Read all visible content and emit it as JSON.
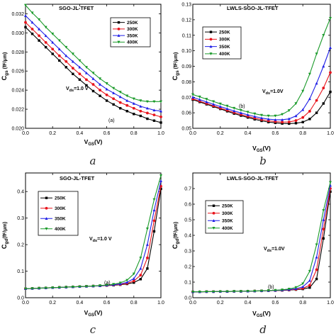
{
  "series_colors": [
    "#000000",
    "#e8141c",
    "#1f1fe6",
    "#1a9a2a"
  ],
  "chart_data": [
    {
      "type": "line",
      "title": "SGO-JL-TFET",
      "panel_letter": "(a)",
      "caption": "a",
      "annotation": "V",
      "annotation_sub": "ds",
      "annotation_rest": "=1.0 V",
      "xlabel_main": "V",
      "xlabel_sub": "GS",
      "xlabel_rest": "(V)",
      "ylabel_main": "C",
      "ylabel_sub": "gs",
      "ylabel_rest": " (fF/μm)",
      "xlim": [
        0.0,
        1.0
      ],
      "ylim": [
        0.02,
        0.033
      ],
      "xticks": [
        "0.0",
        "0.2",
        "0.4",
        "0.6",
        "0.8",
        "1.0"
      ],
      "xtick_values": [
        0.0,
        0.2,
        0.4,
        0.6,
        0.8,
        1.0
      ],
      "yticks": [
        "0.020",
        "0.022",
        "0.024",
        "0.026",
        "0.028",
        "0.030",
        "0.032"
      ],
      "ytick_values": [
        0.02,
        0.022,
        0.024,
        0.026,
        0.028,
        0.03,
        0.032
      ],
      "legend_position": "top-right",
      "x": [
        0.0,
        0.05,
        0.1,
        0.15,
        0.2,
        0.25,
        0.3,
        0.35,
        0.4,
        0.45,
        0.5,
        0.55,
        0.6,
        0.65,
        0.7,
        0.75,
        0.8,
        0.85,
        0.9,
        0.95,
        1.0
      ],
      "series": [
        {
          "name": "250K",
          "values": [
            0.0306,
            0.0299,
            0.0292,
            0.0285,
            0.0278,
            0.0271,
            0.0264,
            0.0257,
            0.0251,
            0.0245,
            0.0239,
            0.0234,
            0.0229,
            0.0225,
            0.0221,
            0.0218,
            0.0215,
            0.0213,
            0.021,
            0.0208,
            0.0206
          ]
        },
        {
          "name": "300K",
          "values": [
            0.0311,
            0.0304,
            0.0297,
            0.029,
            0.0283,
            0.0276,
            0.027,
            0.0263,
            0.0257,
            0.0251,
            0.0246,
            0.024,
            0.0235,
            0.0231,
            0.0227,
            0.0224,
            0.0221,
            0.0218,
            0.0216,
            0.0214,
            0.0212
          ]
        },
        {
          "name": "350K",
          "values": [
            0.0318,
            0.0311,
            0.0304,
            0.0297,
            0.029,
            0.0283,
            0.0276,
            0.027,
            0.0264,
            0.0258,
            0.0252,
            0.0246,
            0.0241,
            0.0237,
            0.0233,
            0.0229,
            0.0226,
            0.0223,
            0.0221,
            0.0219,
            0.0218
          ]
        },
        {
          "name": "400K",
          "values": [
            0.0329,
            0.0321,
            0.0314,
            0.0306,
            0.0299,
            0.0292,
            0.0285,
            0.0278,
            0.0271,
            0.0264,
            0.0258,
            0.0252,
            0.0247,
            0.0242,
            0.0238,
            0.0234,
            0.0231,
            0.0229,
            0.0228,
            0.0228,
            0.0228
          ]
        }
      ]
    },
    {
      "type": "line",
      "title": "LWLS-SGO-JL-TFET",
      "panel_letter": "(b)",
      "caption": "b",
      "annotation": "V",
      "annotation_sub": "ds",
      "annotation_rest": "=1.0V",
      "xlabel_main": "V",
      "xlabel_sub": "GS",
      "xlabel_rest": "(V)",
      "ylabel_main": "C",
      "ylabel_sub": "gs",
      "ylabel_rest": " (fF/μm)",
      "xlim": [
        0.0,
        1.0
      ],
      "ylim": [
        0.05,
        0.13
      ],
      "xticks": [
        "0.0",
        "0.2",
        "0.4",
        "0.6",
        "0.8",
        "1.0"
      ],
      "xtick_values": [
        0.0,
        0.2,
        0.4,
        0.6,
        0.8,
        1.0
      ],
      "yticks": [
        "0.05",
        "0.06",
        "0.07",
        "0.08",
        "0.09",
        "0.10",
        "0.11",
        "0.12",
        "0.13"
      ],
      "ytick_values": [
        0.05,
        0.06,
        0.07,
        0.08,
        0.09,
        0.1,
        0.11,
        0.12,
        0.13
      ],
      "legend_position": "top-left",
      "x": [
        0.0,
        0.05,
        0.1,
        0.15,
        0.2,
        0.25,
        0.3,
        0.35,
        0.4,
        0.45,
        0.5,
        0.55,
        0.6,
        0.65,
        0.7,
        0.75,
        0.8,
        0.85,
        0.9,
        0.95,
        1.0
      ],
      "series": [
        {
          "name": "250K",
          "values": [
            0.0685,
            0.067,
            0.0655,
            0.064,
            0.0625,
            0.061,
            0.0595,
            0.0582,
            0.057,
            0.0558,
            0.0548,
            0.054,
            0.0535,
            0.0531,
            0.053,
            0.0533,
            0.054,
            0.056,
            0.06,
            0.066,
            0.0735
          ]
        },
        {
          "name": "300K",
          "values": [
            0.069,
            0.0675,
            0.066,
            0.0645,
            0.063,
            0.0616,
            0.0602,
            0.0589,
            0.0577,
            0.0566,
            0.0556,
            0.0548,
            0.0543,
            0.054,
            0.0541,
            0.055,
            0.057,
            0.061,
            0.068,
            0.076,
            0.086
          ]
        },
        {
          "name": "350K",
          "values": [
            0.07,
            0.0685,
            0.067,
            0.0655,
            0.064,
            0.0626,
            0.0612,
            0.0599,
            0.0587,
            0.0576,
            0.0566,
            0.0559,
            0.0555,
            0.0555,
            0.0561,
            0.058,
            0.062,
            0.069,
            0.079,
            0.09,
            0.102
          ]
        },
        {
          "name": "400K",
          "values": [
            0.0718,
            0.0703,
            0.0688,
            0.0673,
            0.0658,
            0.0644,
            0.063,
            0.0617,
            0.0605,
            0.0594,
            0.0585,
            0.058,
            0.058,
            0.059,
            0.0615,
            0.066,
            0.074,
            0.085,
            0.098,
            0.11,
            0.121
          ]
        }
      ]
    },
    {
      "type": "line",
      "title": "SGO-JL-TFET",
      "panel_letter": "(a)",
      "caption": "c",
      "annotation": "V",
      "annotation_sub": "ds",
      "annotation_rest": "=1.0 V",
      "xlabel_main": "V",
      "xlabel_sub": "GS",
      "xlabel_rest": "(V)",
      "ylabel_main": "C",
      "ylabel_sub": "gd",
      "ylabel_rest": "(fF/μm)",
      "xlim": [
        0.0,
        1.0
      ],
      "ylim": [
        0.0,
        0.47
      ],
      "xticks": [
        "0.0",
        "0.2",
        "0.4",
        "0.6",
        "0.8",
        "1.0"
      ],
      "xtick_values": [
        0.0,
        0.2,
        0.4,
        0.6,
        0.8,
        1.0
      ],
      "yticks": [
        "0.0",
        "0.1",
        "0.2",
        "0.3",
        "0.4"
      ],
      "ytick_values": [
        0.0,
        0.1,
        0.2,
        0.3,
        0.4
      ],
      "legend_position": "top-left",
      "x": [
        0.0,
        0.05,
        0.1,
        0.15,
        0.2,
        0.25,
        0.3,
        0.35,
        0.4,
        0.45,
        0.5,
        0.55,
        0.6,
        0.65,
        0.7,
        0.75,
        0.8,
        0.85,
        0.9,
        0.95,
        1.0
      ],
      "series": [
        {
          "name": "250K",
          "values": [
            0.034,
            0.035,
            0.036,
            0.037,
            0.038,
            0.039,
            0.04,
            0.041,
            0.042,
            0.043,
            0.044,
            0.045,
            0.046,
            0.047,
            0.049,
            0.052,
            0.057,
            0.07,
            0.11,
            0.25,
            0.41
          ]
        },
        {
          "name": "300K",
          "values": [
            0.034,
            0.035,
            0.036,
            0.037,
            0.038,
            0.039,
            0.04,
            0.041,
            0.042,
            0.043,
            0.044,
            0.045,
            0.046,
            0.048,
            0.05,
            0.054,
            0.063,
            0.085,
            0.15,
            0.29,
            0.42
          ]
        },
        {
          "name": "350K",
          "values": [
            0.034,
            0.035,
            0.036,
            0.037,
            0.038,
            0.039,
            0.04,
            0.041,
            0.042,
            0.043,
            0.044,
            0.045,
            0.047,
            0.049,
            0.052,
            0.058,
            0.072,
            0.11,
            0.2,
            0.33,
            0.44
          ]
        },
        {
          "name": "400K",
          "values": [
            0.034,
            0.035,
            0.036,
            0.037,
            0.038,
            0.039,
            0.04,
            0.041,
            0.042,
            0.043,
            0.044,
            0.046,
            0.048,
            0.051,
            0.056,
            0.066,
            0.09,
            0.15,
            0.26,
            0.37,
            0.46
          ]
        }
      ]
    },
    {
      "type": "line",
      "title": "LWLS-SGO-JL-TFET",
      "panel_letter": "(b)",
      "caption": "d",
      "annotation": "V",
      "annotation_sub": "ds",
      "annotation_rest": "=1.0V",
      "xlabel_main": "V",
      "xlabel_sub": "GS",
      "xlabel_rest": "(V)",
      "ylabel_main": "C",
      "ylabel_sub": "gd",
      "ylabel_rest": "(fF/μm)",
      "xlim": [
        0.0,
        1.0
      ],
      "ylim": [
        0.0,
        0.8
      ],
      "xticks": [
        "0.0",
        "0.2",
        "0.4",
        "0.6",
        "0.8",
        "1.0"
      ],
      "xtick_values": [
        0.0,
        0.2,
        0.4,
        0.6,
        0.8,
        1.0
      ],
      "yticks": [
        "0.0",
        "0.1",
        "0.2",
        "0.3",
        "0.4",
        "0.5",
        "0.6",
        "0.7"
      ],
      "ytick_values": [
        0.0,
        0.1,
        0.2,
        0.3,
        0.4,
        0.5,
        0.6,
        0.7
      ],
      "legend_position": "top-left",
      "x": [
        0.0,
        0.05,
        0.1,
        0.15,
        0.2,
        0.25,
        0.3,
        0.35,
        0.4,
        0.45,
        0.5,
        0.55,
        0.6,
        0.65,
        0.7,
        0.75,
        0.8,
        0.85,
        0.9,
        0.95,
        1.0
      ],
      "series": [
        {
          "name": "250K",
          "values": [
            0.038,
            0.038,
            0.039,
            0.039,
            0.04,
            0.04,
            0.041,
            0.041,
            0.042,
            0.043,
            0.044,
            0.045,
            0.046,
            0.047,
            0.049,
            0.052,
            0.056,
            0.065,
            0.12,
            0.38,
            0.68
          ]
        },
        {
          "name": "300K",
          "values": [
            0.038,
            0.038,
            0.039,
            0.039,
            0.04,
            0.04,
            0.041,
            0.041,
            0.042,
            0.043,
            0.044,
            0.045,
            0.046,
            0.048,
            0.05,
            0.054,
            0.06,
            0.08,
            0.18,
            0.44,
            0.7
          ]
        },
        {
          "name": "350K",
          "values": [
            0.038,
            0.038,
            0.039,
            0.039,
            0.04,
            0.04,
            0.041,
            0.041,
            0.042,
            0.043,
            0.044,
            0.045,
            0.047,
            0.049,
            0.052,
            0.058,
            0.07,
            0.11,
            0.26,
            0.5,
            0.72
          ]
        },
        {
          "name": "400K",
          "values": [
            0.038,
            0.038,
            0.039,
            0.039,
            0.04,
            0.04,
            0.041,
            0.041,
            0.042,
            0.043,
            0.044,
            0.046,
            0.048,
            0.051,
            0.056,
            0.066,
            0.09,
            0.17,
            0.34,
            0.56,
            0.74
          ]
        }
      ]
    }
  ]
}
